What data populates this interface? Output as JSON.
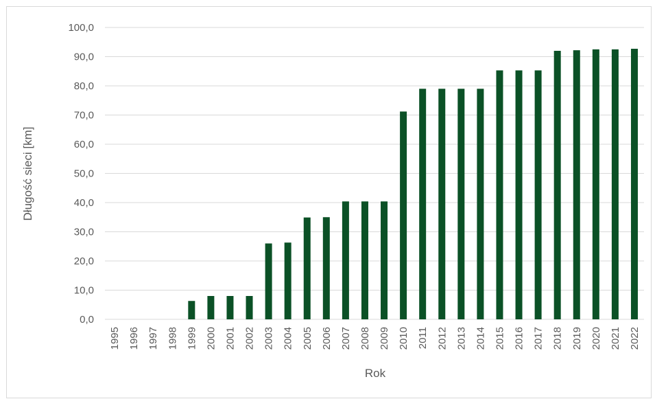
{
  "chart_data": {
    "type": "bar",
    "title": "",
    "xlabel": "Rok",
    "ylabel": "Długość sieci [km]",
    "ylim": [
      0,
      100
    ],
    "yticks": [
      "0,0",
      "10,0",
      "20,0",
      "30,0",
      "40,0",
      "50,0",
      "60,0",
      "70,0",
      "80,0",
      "90,0",
      "100,0"
    ],
    "grid": "horizontal",
    "categories": [
      "1995",
      "1996",
      "1997",
      "1998",
      "1999",
      "2000",
      "2001",
      "2002",
      "2003",
      "2004",
      "2005",
      "2006",
      "2007",
      "2008",
      "2009",
      "2010",
      "2011",
      "2012",
      "2013",
      "2014",
      "2015",
      "2016",
      "2017",
      "2018",
      "2019",
      "2020",
      "2021",
      "2022"
    ],
    "values": [
      0,
      0,
      0,
      0,
      6.3,
      8.0,
      8.0,
      8.0,
      26.0,
      26.3,
      34.9,
      35.0,
      40.4,
      40.4,
      40.4,
      71.2,
      79.0,
      79.0,
      79.0,
      79.0,
      85.3,
      85.3,
      85.3,
      92.0,
      92.2,
      92.5,
      92.5,
      92.7
    ],
    "colors": {
      "bar": "#0b5126",
      "grid": "#d9d9d9",
      "text": "#595959"
    }
  }
}
